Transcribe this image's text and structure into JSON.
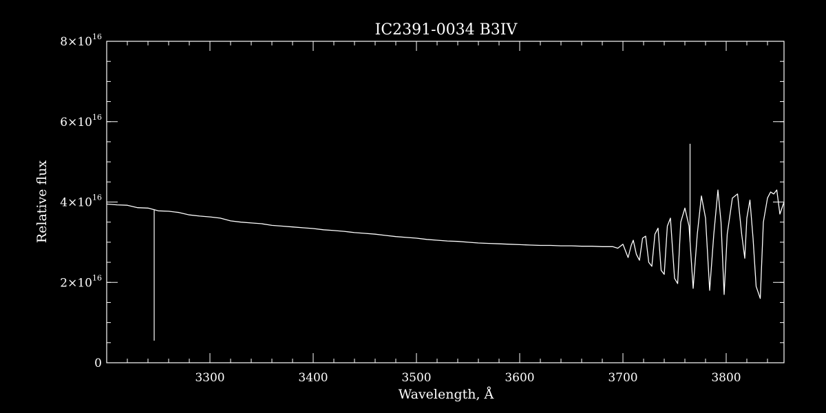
{
  "chart_data": {
    "type": "line",
    "title": "IC2391-0034   B3IV",
    "xlabel": "Wavelength, Å",
    "ylabel": "Relative flux",
    "xlim": [
      3200,
      3856
    ],
    "ylim": [
      0,
      8e+16
    ],
    "x_ticks": [
      {
        "value": 3300,
        "label": "3300"
      },
      {
        "value": 3400,
        "label": "3400"
      },
      {
        "value": 3500,
        "label": "3500"
      },
      {
        "value": 3600,
        "label": "3600"
      },
      {
        "value": 3700,
        "label": "3700"
      },
      {
        "value": 3800,
        "label": "3800"
      }
    ],
    "y_ticks": [
      {
        "value": 0,
        "label": "0"
      },
      {
        "value": 2e+16,
        "mantissa": "2",
        "times": "×10",
        "exp": "16"
      },
      {
        "value": 4e+16,
        "mantissa": "4",
        "times": "×10",
        "exp": "16"
      },
      {
        "value": 6e+16,
        "mantissa": "6",
        "times": "×10",
        "exp": "16"
      },
      {
        "value": 8e+16,
        "mantissa": "8",
        "times": "×10",
        "exp": "16"
      }
    ],
    "x_minor_step": 20,
    "y_minor_step": 5000000000000000.0,
    "series": [
      {
        "color": "#ffffff",
        "x": [
          3200,
          3210,
          3220,
          3230,
          3240,
          3250,
          3260,
          3270,
          3280,
          3290,
          3300,
          3310,
          3320,
          3330,
          3340,
          3350,
          3360,
          3370,
          3380,
          3390,
          3400,
          3410,
          3420,
          3430,
          3440,
          3450,
          3460,
          3470,
          3480,
          3490,
          3500,
          3510,
          3520,
          3530,
          3540,
          3550,
          3560,
          3570,
          3580,
          3590,
          3600,
          3610,
          3620,
          3630,
          3640,
          3650,
          3660,
          3670,
          3680,
          3690,
          3695,
          3700,
          3703,
          3705,
          3708,
          3710,
          3713,
          3716,
          3719,
          3722,
          3725,
          3728,
          3731,
          3734,
          3737,
          3740,
          3743,
          3746,
          3750,
          3753,
          3756,
          3760,
          3764,
          3768,
          3772,
          3776,
          3780,
          3784,
          3788,
          3792,
          3795,
          3798,
          3801,
          3806,
          3811,
          3815,
          3818,
          3820,
          3823,
          3826,
          3829,
          3833,
          3836,
          3840,
          3843,
          3846,
          3849,
          3852,
          3856
        ],
        "y": [
          3.95e+16,
          3.93e+16,
          3.92e+16,
          3.86e+16,
          3.85e+16,
          3.78e+16,
          3.77e+16,
          3.74e+16,
          3.68e+16,
          3.65e+16,
          3.63e+16,
          3.6e+16,
          3.53e+16,
          3.5e+16,
          3.48e+16,
          3.46e+16,
          3.42e+16,
          3.4e+16,
          3.38e+16,
          3.36e+16,
          3.34e+16,
          3.31e+16,
          3.29e+16,
          3.27e+16,
          3.24e+16,
          3.22e+16,
          3.2e+16,
          3.17e+16,
          3.14e+16,
          3.12e+16,
          3.1e+16,
          3.07e+16,
          3.05e+16,
          3.03e+16,
          3.02e+16,
          3e+16,
          2.98e+16,
          2.97e+16,
          2.96e+16,
          2.95e+16,
          2.94e+16,
          2.93e+16,
          2.92e+16,
          2.92e+16,
          2.91e+16,
          2.91e+16,
          2.9e+16,
          2.9e+16,
          2.89e+16,
          2.89e+16,
          2.85e+16,
          2.95e+16,
          2.75e+16,
          2.62e+16,
          2.92e+16,
          3.05e+16,
          2.7e+16,
          2.55e+16,
          3.1e+16,
          3.15e+16,
          2.5e+16,
          2.4e+16,
          3.2e+16,
          3.35e+16,
          2.3e+16,
          2.2e+16,
          3.4e+16,
          3.6e+16,
          2.1e+16,
          1.97e+16,
          3.5e+16,
          3.85e+16,
          3.4e+16,
          1.85e+16,
          3.2e+16,
          4.15e+16,
          3.6e+16,
          1.8e+16,
          3.2e+16,
          4.3e+16,
          3.5e+16,
          1.7e+16,
          3.2e+16,
          4.1e+16,
          4.2e+16,
          3.2e+16,
          2.6e+16,
          3.6e+16,
          4.05e+16,
          3.1e+16,
          1.9e+16,
          1.6e+16,
          3.5e+16,
          4.1e+16,
          4.25e+16,
          4.2e+16,
          4.3e+16,
          3.7e+16,
          4e+16
        ]
      }
    ],
    "spikes": [
      {
        "x": 3246,
        "y": 5500000000000000.0
      },
      {
        "x": 3765,
        "y": 5.45e+16
      }
    ]
  }
}
